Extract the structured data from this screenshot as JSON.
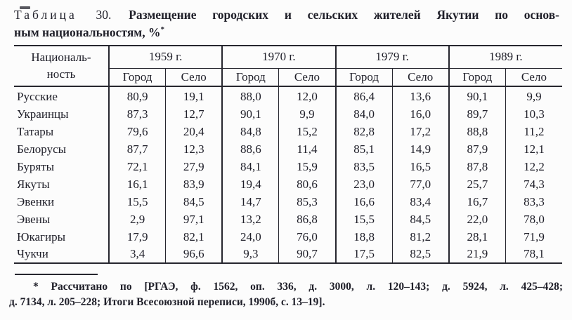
{
  "colors": {
    "text": "#20202a",
    "border": "#26262e",
    "background": "#fcfcfc"
  },
  "title": {
    "label": "Таблица",
    "number": "30.",
    "text_line1": "Размещение городских и сельских жителей Якутии по основ-",
    "text_line2": "ным национальностям, %",
    "footnote_marker": "*"
  },
  "table": {
    "header": {
      "nationality_line1": "Националь-",
      "nationality_line2": "ность",
      "years": [
        "1959 г.",
        "1970 г.",
        "1979 г.",
        "1989 г."
      ],
      "subcolumns": [
        "Город",
        "Село"
      ]
    },
    "rows": [
      {
        "nationality": "Русские",
        "values": [
          "80,9",
          "19,1",
          "88,0",
          "12,0",
          "86,4",
          "13,6",
          "90,1",
          "9,9"
        ]
      },
      {
        "nationality": "Украинцы",
        "values": [
          "87,3",
          "12,7",
          "90,1",
          "9,9",
          "84,0",
          "16,0",
          "89,7",
          "10,3"
        ]
      },
      {
        "nationality": "Татары",
        "values": [
          "79,6",
          "20,4",
          "84,8",
          "15,2",
          "82,8",
          "17,2",
          "88,8",
          "11,2"
        ]
      },
      {
        "nationality": "Белорусы",
        "values": [
          "87,7",
          "12,3",
          "88,6",
          "11,4",
          "85,1",
          "14,9",
          "87,9",
          "12,1"
        ]
      },
      {
        "nationality": "Буряты",
        "values": [
          "72,1",
          "27,9",
          "84,1",
          "15,9",
          "83,5",
          "16,5",
          "87,8",
          "12,2"
        ]
      },
      {
        "nationality": "Якуты",
        "values": [
          "16,1",
          "83,9",
          "19,4",
          "80,6",
          "23,0",
          "77,0",
          "25,7",
          "74,3"
        ]
      },
      {
        "nationality": "Эвенки",
        "values": [
          "15,5",
          "84,5",
          "14,7",
          "85,3",
          "16,6",
          "83,4",
          "16,7",
          "83,3"
        ]
      },
      {
        "nationality": "Эвены",
        "values": [
          "2,9",
          "97,1",
          "13,2",
          "86,8",
          "15,5",
          "84,5",
          "22,0",
          "78,0"
        ]
      },
      {
        "nationality": "Юкагиры",
        "values": [
          "17,9",
          "82,1",
          "24,0",
          "76,0",
          "18,8",
          "81,2",
          "28,1",
          "71,9"
        ]
      },
      {
        "nationality": "Чукчи",
        "values": [
          "3,4",
          "96,6",
          "9,3",
          "90,7",
          "17,5",
          "82,5",
          "21,9",
          "78,1"
        ]
      }
    ]
  },
  "footnote": {
    "marker": "*",
    "line1_text": "Рассчитано по [РГАЭ, ф. 1562, оп. 336, д. 3000, л. 120–143; д. 5924, л. 425–428;",
    "line2_text": "д. 7134, л. 205–228; Итоги Всесоюзной переписи, 1990б, с. 13–19]."
  }
}
